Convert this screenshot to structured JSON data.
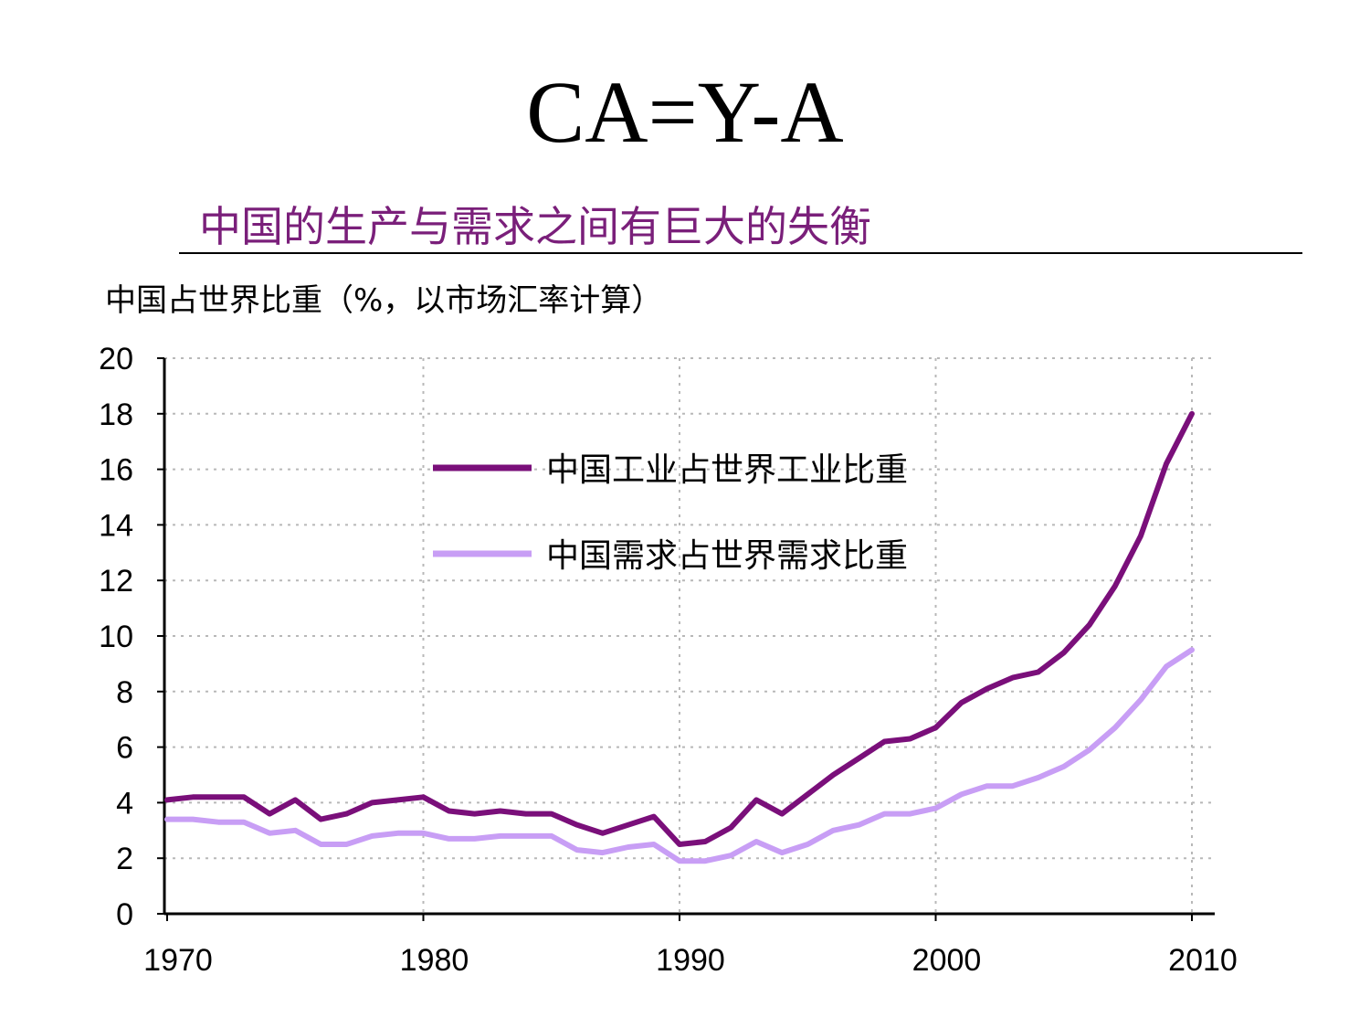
{
  "slide": {
    "title": "CA=Y-A",
    "subtitle": "中国的生产与需求之间有巨大的失衡"
  },
  "chart_data": {
    "type": "line",
    "title": "中国占世界比重（%，以市场汇率计算）",
    "xlabel": "",
    "ylabel": "",
    "xlim": [
      1970,
      2011
    ],
    "ylim": [
      0,
      20
    ],
    "x_ticks": [
      1970,
      1980,
      1990,
      2000,
      2010
    ],
    "y_ticks": [
      0,
      2,
      4,
      6,
      8,
      10,
      12,
      14,
      16,
      18,
      20
    ],
    "grid": true,
    "legend_position": "upper-center",
    "x": [
      1970,
      1971,
      1972,
      1973,
      1974,
      1975,
      1976,
      1977,
      1978,
      1979,
      1980,
      1981,
      1982,
      1983,
      1984,
      1985,
      1986,
      1987,
      1988,
      1989,
      1990,
      1991,
      1992,
      1993,
      1994,
      1995,
      1996,
      1997,
      1998,
      1999,
      2000,
      2001,
      2002,
      2003,
      2004,
      2005,
      2006,
      2007,
      2008,
      2009,
      2010
    ],
    "series": [
      {
        "name": "中国工业占世界工业比重",
        "color": "#7a0f7a",
        "values": [
          4.1,
          4.2,
          4.2,
          4.2,
          3.6,
          4.1,
          3.4,
          3.6,
          4.0,
          4.1,
          4.2,
          3.7,
          3.6,
          3.7,
          3.6,
          3.6,
          3.2,
          2.9,
          3.2,
          3.5,
          2.5,
          2.6,
          3.1,
          4.1,
          3.6,
          4.3,
          5.0,
          5.6,
          6.2,
          6.3,
          6.7,
          7.6,
          8.1,
          8.5,
          8.7,
          9.4,
          10.4,
          11.8,
          13.6,
          16.2,
          18.0
        ]
      },
      {
        "name": "中国需求占世界需求比重",
        "color": "#c89ef5",
        "values": [
          3.4,
          3.4,
          3.3,
          3.3,
          2.9,
          3.0,
          2.5,
          2.5,
          2.8,
          2.9,
          2.9,
          2.7,
          2.7,
          2.8,
          2.8,
          2.8,
          2.3,
          2.2,
          2.4,
          2.5,
          1.9,
          1.9,
          2.1,
          2.6,
          2.2,
          2.5,
          3.0,
          3.2,
          3.6,
          3.6,
          3.8,
          4.3,
          4.6,
          4.6,
          4.9,
          5.3,
          5.9,
          6.7,
          7.7,
          8.9,
          9.5
        ]
      }
    ]
  }
}
